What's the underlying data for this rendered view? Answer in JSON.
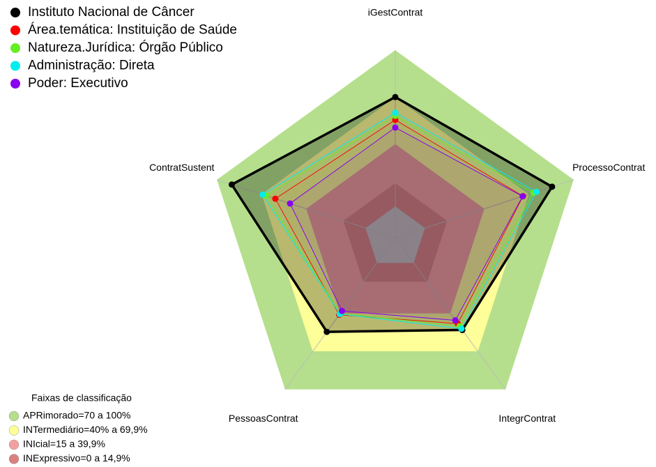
{
  "chart_data": {
    "type": "radar",
    "categories": [
      "iGestContrat",
      "ProcessoContrat",
      "IntegrContrat",
      "PessoasContrat",
      "ContratSustent"
    ],
    "ylim": [
      -20,
      100
    ],
    "series": [
      {
        "name": "Instituto Nacional de Câncer",
        "color": "#000000",
        "values": [
          70,
          85.5,
          53,
          54.5,
          90
        ]
      },
      {
        "name": "Área.temática: Instituição de Saúde",
        "color": "#ff0000",
        "values": [
          55.4,
          66,
          48,
          41,
          60.7
        ]
      },
      {
        "name": "Natureza.Jurídica: Órgão Público",
        "color": "#66ee22",
        "values": [
          58,
          73,
          50,
          40,
          67
        ]
      },
      {
        "name": "Administração: Direta",
        "color": "#00eeee",
        "values": [
          60,
          75,
          52,
          40.4,
          69.2
        ]
      },
      {
        "name": "Poder: Executivo",
        "color": "#8800ee",
        "values": [
          50.5,
          65.7,
          45.4,
          38,
          50.8
        ]
      }
    ],
    "bands_title": "Faixas de classificação",
    "bands": [
      {
        "label": "APRimorado=70 a 100%",
        "from": 70,
        "to": 100,
        "color": "#b5df8c"
      },
      {
        "label": "INTermediário=40% a 69,9%",
        "from": 40,
        "to": 69.9,
        "color": "#ffff99"
      },
      {
        "label": "INIcial=15 a 39,9%",
        "from": 15,
        "to": 39.9,
        "color": "#f3a0a0"
      },
      {
        "label": "INExpressivo=0 a 14,9%",
        "from": 0,
        "to": 14.9,
        "color": "#d98080"
      }
    ]
  }
}
